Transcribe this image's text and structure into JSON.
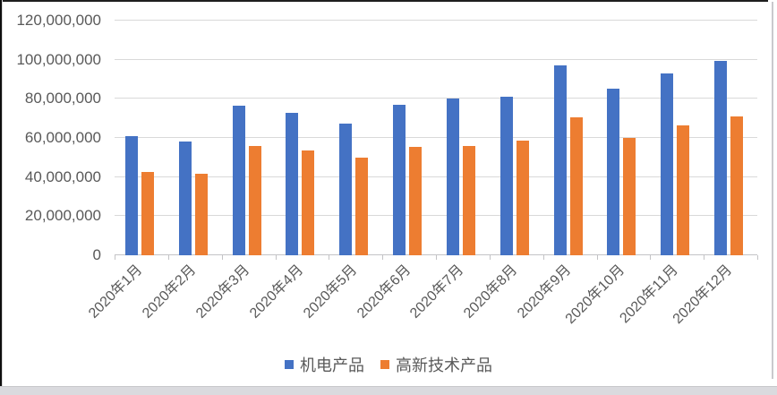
{
  "chart_data": {
    "type": "bar",
    "title": "",
    "categories": [
      "2020年1月",
      "2020年2月",
      "2020年3月",
      "2020年4月",
      "2020年5月",
      "2020年6月",
      "2020年7月",
      "2020年8月",
      "2020年9月",
      "2020年10月",
      "2020年11月",
      "2020年12月"
    ],
    "series": [
      {
        "name": "机电产品",
        "color": "#4472C4",
        "values": [
          61000000,
          58000000,
          76500000,
          73000000,
          67500000,
          77000000,
          80000000,
          81000000,
          97000000,
          85000000,
          93000000,
          99500000
        ]
      },
      {
        "name": "高新技术产品",
        "color": "#ED7D31",
        "values": [
          42500000,
          41500000,
          56000000,
          53500000,
          50000000,
          55500000,
          56000000,
          58500000,
          70500000,
          60000000,
          66500000,
          71000000
        ]
      }
    ],
    "xlabel": "",
    "ylabel": "",
    "ylim": [
      0,
      120000000
    ],
    "ytick_interval": 20000000,
    "ytick_labels": [
      "0",
      "20,000,000",
      "40,000,000",
      "60,000,000",
      "80,000,000",
      "100,000,000",
      "120,000,000"
    ],
    "grid": true,
    "legend_position": "bottom",
    "x_tick_rotation": 45
  },
  "colors": {
    "series_blue": "#4472C4",
    "series_orange": "#ED7D31",
    "gridline": "#D9D9D9",
    "axis_line": "#C3C3C6",
    "axis_text": "#595959",
    "background": "#FFFFFF"
  }
}
